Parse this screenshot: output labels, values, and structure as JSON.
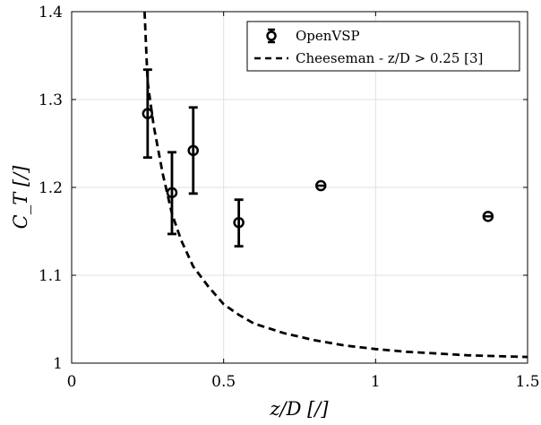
{
  "chart_data": {
    "type": "scatter",
    "xlabel": "z/D [/]",
    "ylabel": "C_T [/]",
    "xlim": [
      0,
      1.5
    ],
    "ylim": [
      1.0,
      1.4
    ],
    "xticks": [
      0,
      0.5,
      1,
      1.5
    ],
    "xtick_labels": [
      "0",
      "0.5",
      "1",
      "1.5"
    ],
    "yticks": [
      1.0,
      1.1,
      1.2,
      1.3,
      1.4
    ],
    "ytick_labels": [
      "1",
      "1.1",
      "1.2",
      "1.3",
      "1.4"
    ],
    "grid": true,
    "legend_position": "top-right",
    "series": [
      {
        "name": "OpenVSP",
        "kind": "errorbar",
        "marker": "circle",
        "color": "#000000",
        "x": [
          0.25,
          0.33,
          0.4,
          0.55,
          0.82,
          1.37
        ],
        "y": [
          1.284,
          1.194,
          1.242,
          1.16,
          1.202,
          1.167
        ],
        "yerr_low": [
          0.05,
          0.047,
          0.049,
          0.027,
          0.0,
          0.0
        ],
        "yerr_high": [
          0.05,
          0.046,
          0.049,
          0.026,
          0.0,
          0.0
        ]
      },
      {
        "name": "Cheeseman - z/D > 0.25 [3]",
        "kind": "dashed-line",
        "color": "#000000",
        "x": [
          0.24,
          0.25,
          0.27,
          0.3,
          0.33,
          0.36,
          0.4,
          0.45,
          0.5,
          0.55,
          0.6,
          0.7,
          0.8,
          0.9,
          1.0,
          1.1,
          1.2,
          1.3,
          1.4,
          1.5
        ],
        "y": [
          1.4,
          1.32,
          1.27,
          1.215,
          1.17,
          1.14,
          1.11,
          1.087,
          1.067,
          1.055,
          1.045,
          1.034,
          1.026,
          1.02,
          1.016,
          1.013,
          1.011,
          1.009,
          1.008,
          1.007
        ]
      }
    ]
  }
}
